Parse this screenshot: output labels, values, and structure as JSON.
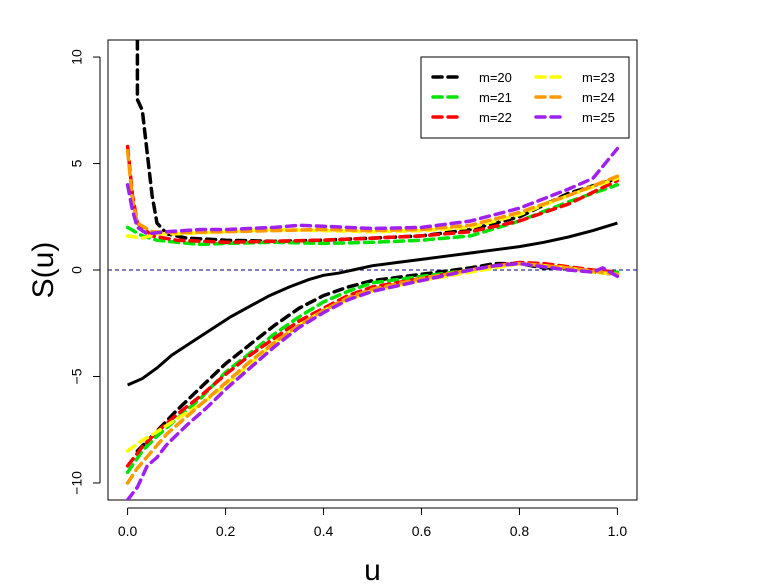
{
  "chart_data": {
    "type": "line",
    "title": "",
    "xlabel": "u",
    "ylabel": "S(u)",
    "xlim": [
      -0.04,
      1.04
    ],
    "ylim": [
      -10.8,
      10.8
    ],
    "x_ticks": [
      0.0,
      0.2,
      0.4,
      0.6,
      0.8,
      1.0
    ],
    "x_tick_labels": [
      "0.0",
      "0.2",
      "0.4",
      "0.6",
      "0.8",
      "1.0"
    ],
    "y_ticks": [
      -10,
      -5,
      0,
      5,
      10
    ],
    "y_tick_labels": [
      "−10",
      "−5",
      "0",
      "5",
      "10"
    ],
    "grid": false,
    "legend_position": "top-right",
    "reference_line": {
      "y": 0,
      "style": "dashed",
      "color": "#00007f"
    },
    "center_line": {
      "color": "#000000",
      "style": "solid",
      "points": [
        [
          0.0,
          -5.4
        ],
        [
          0.03,
          -5.1
        ],
        [
          0.06,
          -4.6
        ],
        [
          0.09,
          -4.0
        ],
        [
          0.13,
          -3.4
        ],
        [
          0.17,
          -2.8
        ],
        [
          0.21,
          -2.2
        ],
        [
          0.25,
          -1.7
        ],
        [
          0.29,
          -1.2
        ],
        [
          0.33,
          -0.8
        ],
        [
          0.37,
          -0.45
        ],
        [
          0.4,
          -0.25
        ],
        [
          0.43,
          -0.15
        ],
        [
          0.46,
          0.0
        ],
        [
          0.5,
          0.2
        ],
        [
          0.55,
          0.35
        ],
        [
          0.6,
          0.5
        ],
        [
          0.65,
          0.65
        ],
        [
          0.7,
          0.8
        ],
        [
          0.75,
          0.95
        ],
        [
          0.8,
          1.1
        ],
        [
          0.85,
          1.3
        ],
        [
          0.9,
          1.55
        ],
        [
          0.95,
          1.85
        ],
        [
          1.0,
          2.2
        ]
      ]
    },
    "series": [
      {
        "name": "m=20",
        "color": "#000000",
        "upper": [
          [
            0.02,
            10.8
          ],
          [
            0.02,
            8.0
          ],
          [
            0.03,
            7.5
          ],
          [
            0.04,
            5.5
          ],
          [
            0.05,
            3.5
          ],
          [
            0.06,
            2.2
          ],
          [
            0.08,
            1.7
          ],
          [
            0.12,
            1.5
          ],
          [
            0.2,
            1.4
          ],
          [
            0.3,
            1.35
          ],
          [
            0.4,
            1.4
          ],
          [
            0.5,
            1.5
          ],
          [
            0.6,
            1.6
          ],
          [
            0.7,
            1.9
          ],
          [
            0.8,
            2.5
          ],
          [
            0.9,
            3.6
          ],
          [
            1.0,
            4.3
          ]
        ],
        "lower": [
          [
            0.02,
            -8.5
          ],
          [
            0.05,
            -7.8
          ],
          [
            0.1,
            -6.6
          ],
          [
            0.15,
            -5.5
          ],
          [
            0.2,
            -4.4
          ],
          [
            0.25,
            -3.5
          ],
          [
            0.3,
            -2.6
          ],
          [
            0.35,
            -1.8
          ],
          [
            0.4,
            -1.2
          ],
          [
            0.45,
            -0.8
          ],
          [
            0.5,
            -0.5
          ],
          [
            0.6,
            -0.2
          ],
          [
            0.7,
            0.1
          ],
          [
            0.75,
            0.3
          ],
          [
            0.8,
            0.3
          ],
          [
            0.85,
            0.1
          ],
          [
            0.9,
            0.1
          ],
          [
            0.95,
            -0.1
          ],
          [
            1.0,
            -0.2
          ]
        ]
      },
      {
        "name": "m=21",
        "color": "#00e400",
        "upper": [
          [
            0.0,
            2.0
          ],
          [
            0.03,
            1.6
          ],
          [
            0.06,
            1.4
          ],
          [
            0.1,
            1.3
          ],
          [
            0.15,
            1.2
          ],
          [
            0.2,
            1.25
          ],
          [
            0.3,
            1.3
          ],
          [
            0.4,
            1.25
          ],
          [
            0.5,
            1.3
          ],
          [
            0.6,
            1.4
          ],
          [
            0.7,
            1.6
          ],
          [
            0.8,
            2.3
          ],
          [
            0.9,
            3.2
          ],
          [
            1.0,
            4.0
          ]
        ],
        "lower": [
          [
            0.0,
            -9.5
          ],
          [
            0.03,
            -8.5
          ],
          [
            0.06,
            -7.8
          ],
          [
            0.1,
            -7.0
          ],
          [
            0.15,
            -6.0
          ],
          [
            0.2,
            -4.8
          ],
          [
            0.25,
            -3.9
          ],
          [
            0.3,
            -3.0
          ],
          [
            0.35,
            -2.2
          ],
          [
            0.4,
            -1.5
          ],
          [
            0.45,
            -1.0
          ],
          [
            0.5,
            -0.6
          ],
          [
            0.6,
            -0.3
          ],
          [
            0.7,
            0.0
          ],
          [
            0.75,
            0.2
          ],
          [
            0.8,
            0.3
          ],
          [
            0.85,
            0.15
          ],
          [
            0.9,
            0.0
          ],
          [
            1.0,
            -0.1
          ]
        ]
      },
      {
        "name": "m=22",
        "color": "#ff0000",
        "upper": [
          [
            0.0,
            5.8
          ],
          [
            0.01,
            3.5
          ],
          [
            0.02,
            2.2
          ],
          [
            0.05,
            1.6
          ],
          [
            0.1,
            1.4
          ],
          [
            0.2,
            1.3
          ],
          [
            0.3,
            1.35
          ],
          [
            0.4,
            1.4
          ],
          [
            0.5,
            1.5
          ],
          [
            0.6,
            1.6
          ],
          [
            0.7,
            1.8
          ],
          [
            0.8,
            2.3
          ],
          [
            0.9,
            3.1
          ],
          [
            1.0,
            4.2
          ]
        ],
        "lower": [
          [
            0.0,
            -9.2
          ],
          [
            0.03,
            -8.3
          ],
          [
            0.06,
            -7.6
          ],
          [
            0.1,
            -6.8
          ],
          [
            0.15,
            -5.9
          ],
          [
            0.2,
            -4.9
          ],
          [
            0.25,
            -4.0
          ],
          [
            0.3,
            -3.2
          ],
          [
            0.35,
            -2.4
          ],
          [
            0.4,
            -1.8
          ],
          [
            0.45,
            -1.2
          ],
          [
            0.5,
            -0.8
          ],
          [
            0.6,
            -0.4
          ],
          [
            0.7,
            0.0
          ],
          [
            0.75,
            0.2
          ],
          [
            0.8,
            0.35
          ],
          [
            0.85,
            0.3
          ],
          [
            0.9,
            0.15
          ],
          [
            0.95,
            0.0
          ],
          [
            1.0,
            -0.1
          ]
        ]
      },
      {
        "name": "m=23",
        "color": "#ffff00",
        "upper": [
          [
            0.0,
            1.6
          ],
          [
            0.03,
            1.5
          ],
          [
            0.06,
            1.7
          ],
          [
            0.1,
            1.7
          ],
          [
            0.2,
            1.8
          ],
          [
            0.3,
            1.9
          ],
          [
            0.4,
            1.85
          ],
          [
            0.5,
            1.8
          ],
          [
            0.6,
            1.85
          ],
          [
            0.7,
            2.0
          ],
          [
            0.8,
            2.6
          ],
          [
            0.9,
            3.5
          ],
          [
            1.0,
            4.3
          ]
        ],
        "lower": [
          [
            0.0,
            -8.5
          ],
          [
            0.03,
            -8.0
          ],
          [
            0.06,
            -7.6
          ],
          [
            0.1,
            -7.0
          ],
          [
            0.15,
            -6.3
          ],
          [
            0.2,
            -5.4
          ],
          [
            0.25,
            -4.4
          ],
          [
            0.3,
            -3.4
          ],
          [
            0.35,
            -2.6
          ],
          [
            0.4,
            -1.9
          ],
          [
            0.45,
            -1.4
          ],
          [
            0.5,
            -1.0
          ],
          [
            0.6,
            -0.5
          ],
          [
            0.7,
            -0.1
          ],
          [
            0.75,
            0.1
          ],
          [
            0.8,
            0.3
          ],
          [
            0.85,
            0.2
          ],
          [
            0.9,
            0.1
          ],
          [
            0.95,
            -0.1
          ],
          [
            1.0,
            -0.2
          ]
        ]
      },
      {
        "name": "m=24",
        "color": "#ff9900",
        "upper": [
          [
            0.0,
            5.6
          ],
          [
            0.01,
            3.3
          ],
          [
            0.02,
            2.2
          ],
          [
            0.05,
            1.8
          ],
          [
            0.1,
            1.75
          ],
          [
            0.2,
            1.8
          ],
          [
            0.3,
            1.85
          ],
          [
            0.4,
            1.9
          ],
          [
            0.5,
            1.85
          ],
          [
            0.6,
            1.9
          ],
          [
            0.7,
            2.1
          ],
          [
            0.8,
            2.7
          ],
          [
            0.9,
            3.5
          ],
          [
            1.0,
            4.4
          ]
        ],
        "lower": [
          [
            0.0,
            -10.0
          ],
          [
            0.02,
            -9.3
          ],
          [
            0.05,
            -8.5
          ],
          [
            0.08,
            -7.7
          ],
          [
            0.12,
            -6.9
          ],
          [
            0.16,
            -6.1
          ],
          [
            0.2,
            -5.3
          ],
          [
            0.25,
            -4.3
          ],
          [
            0.3,
            -3.4
          ],
          [
            0.35,
            -2.6
          ],
          [
            0.4,
            -1.9
          ],
          [
            0.45,
            -1.3
          ],
          [
            0.5,
            -0.9
          ],
          [
            0.6,
            -0.4
          ],
          [
            0.7,
            0.0
          ],
          [
            0.75,
            0.2
          ],
          [
            0.8,
            0.3
          ],
          [
            0.85,
            0.2
          ],
          [
            0.9,
            0.1
          ],
          [
            1.0,
            -0.2
          ]
        ]
      },
      {
        "name": "m=25",
        "color": "#a020f0",
        "upper": [
          [
            0.0,
            4.0
          ],
          [
            0.01,
            2.8
          ],
          [
            0.02,
            2.0
          ],
          [
            0.04,
            1.7
          ],
          [
            0.08,
            1.8
          ],
          [
            0.15,
            1.9
          ],
          [
            0.2,
            1.9
          ],
          [
            0.3,
            2.0
          ],
          [
            0.35,
            2.1
          ],
          [
            0.4,
            2.05
          ],
          [
            0.5,
            1.95
          ],
          [
            0.6,
            2.0
          ],
          [
            0.7,
            2.3
          ],
          [
            0.8,
            2.9
          ],
          [
            0.9,
            3.8
          ],
          [
            0.95,
            4.3
          ],
          [
            1.0,
            5.7
          ]
        ],
        "lower": [
          [
            0.0,
            -10.8
          ],
          [
            0.02,
            -10.2
          ],
          [
            0.04,
            -9.2
          ],
          [
            0.06,
            -8.8
          ],
          [
            0.08,
            -8.2
          ],
          [
            0.12,
            -7.3
          ],
          [
            0.16,
            -6.5
          ],
          [
            0.2,
            -5.6
          ],
          [
            0.25,
            -4.6
          ],
          [
            0.3,
            -3.6
          ],
          [
            0.35,
            -2.7
          ],
          [
            0.4,
            -2.0
          ],
          [
            0.45,
            -1.4
          ],
          [
            0.5,
            -1.0
          ],
          [
            0.6,
            -0.5
          ],
          [
            0.7,
            0.0
          ],
          [
            0.75,
            0.2
          ],
          [
            0.8,
            0.3
          ],
          [
            0.85,
            0.15
          ],
          [
            0.9,
            0.0
          ],
          [
            0.95,
            -0.1
          ],
          [
            0.97,
            0.1
          ],
          [
            1.0,
            -0.3
          ]
        ]
      }
    ]
  }
}
